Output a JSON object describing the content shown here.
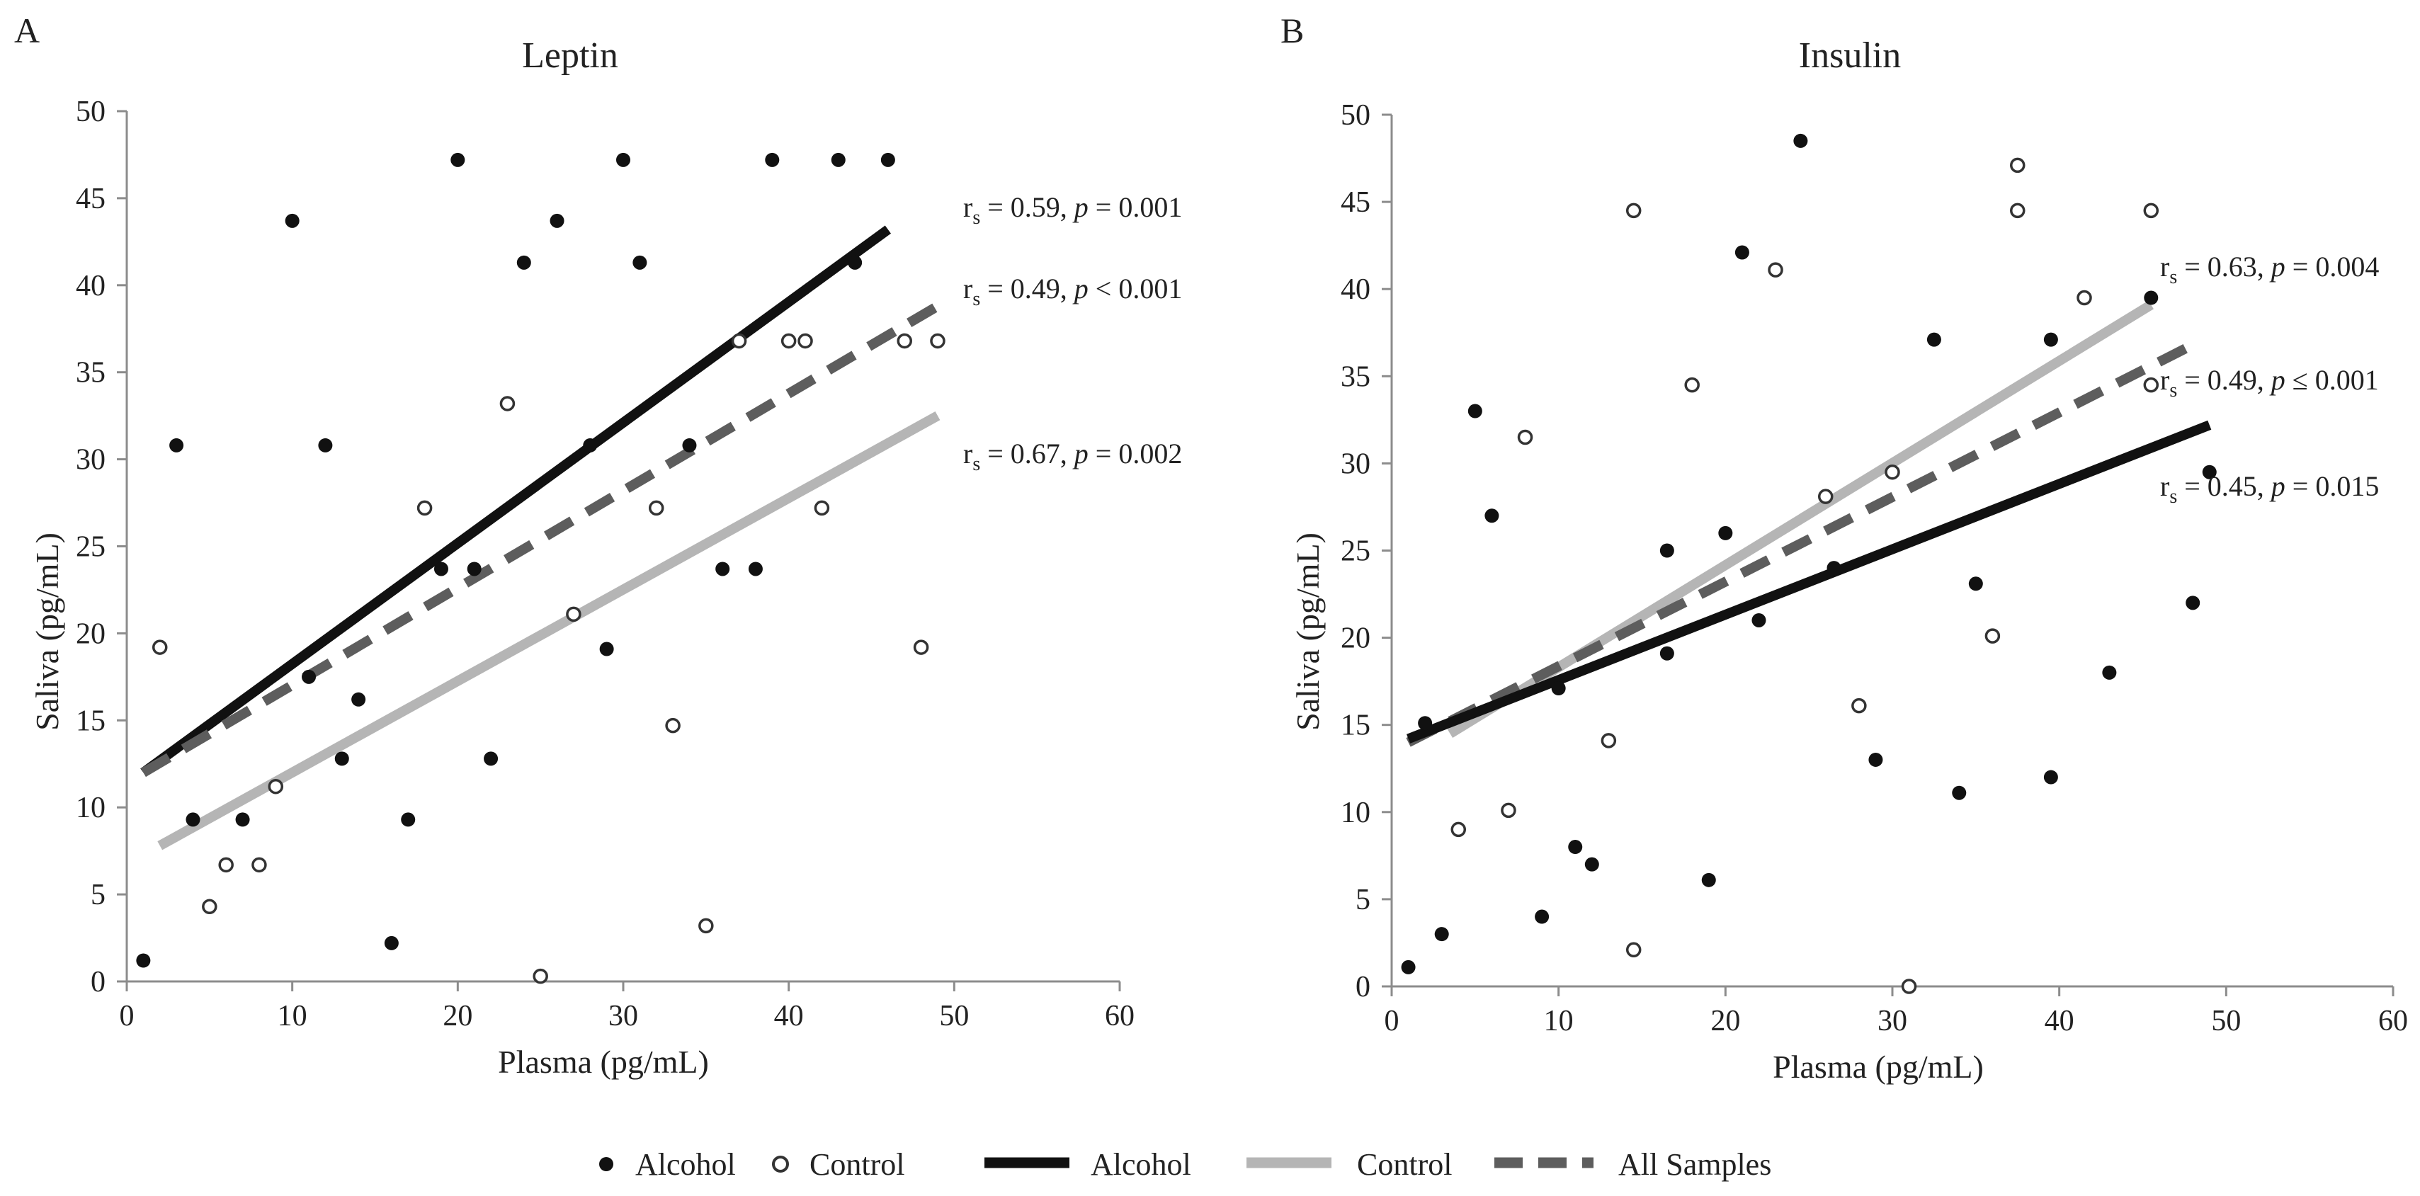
{
  "colors": {
    "alcohol": "#111111",
    "control": "#b5b5b5",
    "all_samples": "#5d5d5d",
    "axis": "#8c8c8c",
    "text": "#222222"
  },
  "legend": {
    "alcohol_points": "Alcohol",
    "control_points": "Control",
    "alcohol_line": "Alcohol",
    "control_line": "Control",
    "all_line": "All Samples"
  },
  "chart_data": [
    {
      "type": "scatter",
      "panel": "A",
      "title": "Leptin",
      "xlabel": "Plasma (pg/mL)",
      "ylabel": "Saliva (pg/mL)",
      "xlim": [
        0,
        60
      ],
      "ylim": [
        0,
        50
      ],
      "xticks": [
        "0",
        "10",
        "20",
        "30",
        "40",
        "50",
        "60"
      ],
      "yticks": [
        "0",
        "5",
        "10",
        "15",
        "20",
        "25",
        "30",
        "35",
        "40",
        "45",
        "50"
      ],
      "series": [
        {
          "name": "Alcohol",
          "marker": "filled-circle",
          "points": [
            [
              1,
              1.2
            ],
            [
              3,
              30.8
            ],
            [
              4,
              9.3
            ],
            [
              7,
              9.3
            ],
            [
              10,
              43.7
            ],
            [
              11,
              17.5
            ],
            [
              12,
              30.8
            ],
            [
              13,
              12.8
            ],
            [
              14,
              16.2
            ],
            [
              16,
              2.2
            ],
            [
              17,
              9.3
            ],
            [
              19,
              23.7
            ],
            [
              20,
              47.2
            ],
            [
              21,
              23.7
            ],
            [
              22,
              12.8
            ],
            [
              24,
              41.3
            ],
            [
              26,
              43.7
            ],
            [
              28,
              30.8
            ],
            [
              29,
              19.1
            ],
            [
              30,
              47.2
            ],
            [
              31,
              41.3
            ],
            [
              34,
              30.8
            ],
            [
              36,
              23.7
            ],
            [
              38,
              23.7
            ],
            [
              39,
              47.2
            ],
            [
              43,
              47.2
            ],
            [
              44,
              41.3
            ],
            [
              46,
              47.2
            ]
          ]
        },
        {
          "name": "Control",
          "marker": "open-circle",
          "points": [
            [
              2,
              19.2
            ],
            [
              5,
              4.3
            ],
            [
              6,
              6.7
            ],
            [
              8,
              6.7
            ],
            [
              9,
              11.2
            ],
            [
              18,
              27.2
            ],
            [
              23,
              33.2
            ],
            [
              25,
              0.3
            ],
            [
              27,
              21.1
            ],
            [
              32,
              27.2
            ],
            [
              33,
              14.7
            ],
            [
              35,
              3.2
            ],
            [
              37,
              36.8
            ],
            [
              40,
              36.8
            ],
            [
              41,
              36.8
            ],
            [
              42,
              27.2
            ],
            [
              47,
              36.8
            ],
            [
              48,
              19.2
            ],
            [
              49,
              36.8
            ]
          ]
        }
      ],
      "trendlines": [
        {
          "name": "Alcohol",
          "from": [
            1,
            12.0
          ],
          "to": [
            46,
            43.2
          ],
          "label": "r",
          "sub": "s",
          "rest_a": " = 0.59, ",
          "p_symbol": "p",
          "rest_b": " = 0.001"
        },
        {
          "name": "All Samples",
          "from": [
            1,
            12.0
          ],
          "to": [
            49,
            38.8
          ],
          "label": "r",
          "sub": "s",
          "rest_a": " = 0.49, ",
          "p_symbol": "p",
          "rest_b": " < 0.001"
        },
        {
          "name": "Control",
          "from": [
            2,
            7.8
          ],
          "to": [
            49,
            32.5
          ],
          "label": "r",
          "sub": "s",
          "rest_a": " = 0.67, ",
          "p_symbol": "p",
          "rest_b": " = 0.002"
        }
      ]
    },
    {
      "type": "scatter",
      "panel": "B",
      "title": "Insulin",
      "xlabel": "Plasma (pg/mL)",
      "ylabel": "Saliva (pg/mL)",
      "xlim": [
        0,
        60
      ],
      "ylim": [
        0,
        50
      ],
      "xticks": [
        "0",
        "10",
        "20",
        "30",
        "40",
        "50",
        "60"
      ],
      "yticks": [
        "0",
        "5",
        "10",
        "15",
        "20",
        "25",
        "30",
        "35",
        "40",
        "45",
        "50"
      ],
      "series": [
        {
          "name": "Alcohol",
          "marker": "filled-circle",
          "points": [
            [
              1,
              1.1
            ],
            [
              2,
              15.1
            ],
            [
              3,
              3.0
            ],
            [
              5,
              33.0
            ],
            [
              6,
              27.0
            ],
            [
              9,
              4.0
            ],
            [
              10,
              17.1
            ],
            [
              11,
              8.0
            ],
            [
              12,
              7.0
            ],
            [
              16.5,
              19.1
            ],
            [
              16.5,
              25.0
            ],
            [
              19,
              6.1
            ],
            [
              20,
              26.0
            ],
            [
              21,
              42.1
            ],
            [
              22,
              21.0
            ],
            [
              24.5,
              48.5
            ],
            [
              26.5,
              24.0
            ],
            [
              29,
              13.0
            ],
            [
              32.5,
              37.1
            ],
            [
              34,
              11.1
            ],
            [
              35,
              23.1
            ],
            [
              39.5,
              37.1
            ],
            [
              39.5,
              12.0
            ],
            [
              43,
              18.0
            ],
            [
              45.5,
              39.5
            ],
            [
              48,
              22.0
            ],
            [
              49,
              29.5
            ]
          ]
        },
        {
          "name": "Control",
          "marker": "open-circle",
          "points": [
            [
              4,
              9.0
            ],
            [
              7,
              10.1
            ],
            [
              8,
              31.5
            ],
            [
              13,
              14.1
            ],
            [
              14.5,
              44.5
            ],
            [
              14.5,
              2.1
            ],
            [
              18,
              34.5
            ],
            [
              23,
              41.1
            ],
            [
              26,
              28.1
            ],
            [
              28,
              16.1
            ],
            [
              30,
              29.5
            ],
            [
              31,
              0.0
            ],
            [
              36,
              20.1
            ],
            [
              37.5,
              47.1
            ],
            [
              37.5,
              44.5
            ],
            [
              41.5,
              39.5
            ],
            [
              45.5,
              44.5
            ],
            [
              45.5,
              34.5
            ]
          ]
        }
      ],
      "trendlines": [
        {
          "name": "Control",
          "from": [
            3.5,
            14.5
          ],
          "to": [
            45.5,
            39.1
          ],
          "label": "r",
          "sub": "s",
          "rest_a": " = 0.63, ",
          "p_symbol": "p",
          "rest_b": " = 0.004"
        },
        {
          "name": "All Samples",
          "from": [
            1,
            14.0
          ],
          "to": [
            48,
            36.8
          ],
          "label": "r",
          "sub": "s",
          "rest_a": " = 0.49, ",
          "p_symbol": "p",
          "rest_b": " ≤ 0.001"
        },
        {
          "name": "Alcohol",
          "from": [
            1,
            14.2
          ],
          "to": [
            49,
            32.2
          ],
          "label": "r",
          "sub": "s",
          "rest_a": " = 0.45, ",
          "p_symbol": "p",
          "rest_b": " = 0.015"
        }
      ]
    }
  ]
}
